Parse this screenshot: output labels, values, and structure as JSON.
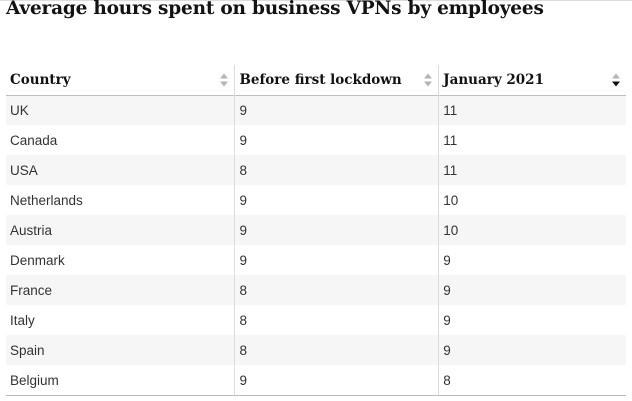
{
  "title": "Average hours spent on business VPNs by employees",
  "table": {
    "columns": [
      {
        "label": "Country",
        "sort": "none"
      },
      {
        "label": "Before first lockdown",
        "sort": "none"
      },
      {
        "label": "January 2021",
        "sort": "descending"
      }
    ],
    "rows": [
      [
        "UK",
        "9",
        "11"
      ],
      [
        "Canada",
        "9",
        "11"
      ],
      [
        "USA",
        "8",
        "11"
      ],
      [
        "Netherlands",
        "9",
        "10"
      ],
      [
        "Austria",
        "9",
        "10"
      ],
      [
        "Denmark",
        "9",
        "9"
      ],
      [
        "France",
        "8",
        "9"
      ],
      [
        "Italy",
        "8",
        "9"
      ],
      [
        "Spain",
        "8",
        "9"
      ],
      [
        "Belgium",
        "9",
        "8"
      ]
    ]
  },
  "colors": {
    "text": "#121212",
    "stripe": "#f6f6f6",
    "icon_inactive": "#b3b3b3",
    "icon_active": "#121212"
  }
}
